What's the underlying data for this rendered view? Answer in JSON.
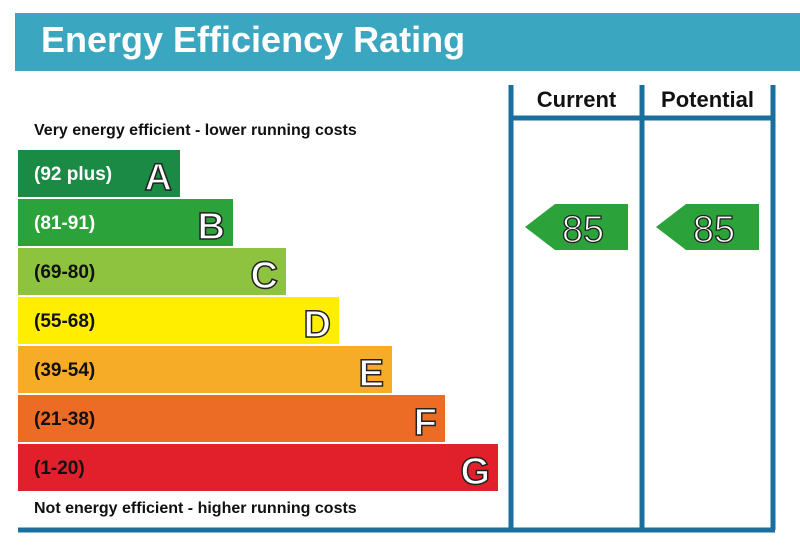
{
  "chart_data": {
    "type": "bar",
    "title": "Energy Efficiency Rating",
    "top_caption": "Very energy efficient - lower running costs",
    "bottom_caption": "Not energy efficient - higher running costs",
    "bands": [
      {
        "range": "(92 plus)",
        "letter": "A",
        "color": "#1a8a45",
        "text_color": "#ffffff"
      },
      {
        "range": "(81-91)",
        "letter": "B",
        "color": "#2ba33a",
        "text_color": "#ffffff"
      },
      {
        "range": "(69-80)",
        "letter": "C",
        "color": "#8dc33f",
        "text_color": "#111111"
      },
      {
        "range": "(55-68)",
        "letter": "D",
        "color": "#ffee00",
        "text_color": "#111111"
      },
      {
        "range": "(39-54)",
        "letter": "E",
        "color": "#f7ac27",
        "text_color": "#111111"
      },
      {
        "range": "(21-38)",
        "letter": "F",
        "color": "#ec6b25",
        "text_color": "#111111"
      },
      {
        "range": "(1-20)",
        "letter": "G",
        "color": "#e1202b",
        "text_color": "#111111"
      }
    ],
    "columns": [
      {
        "header": "Current",
        "value": 85,
        "band": "B",
        "color": "#2ba33a"
      },
      {
        "header": "Potential",
        "value": 85,
        "band": "B",
        "color": "#2ba33a"
      }
    ],
    "frame_color": "#1a6f9e",
    "title_bar_color": "#3ba6bf"
  }
}
